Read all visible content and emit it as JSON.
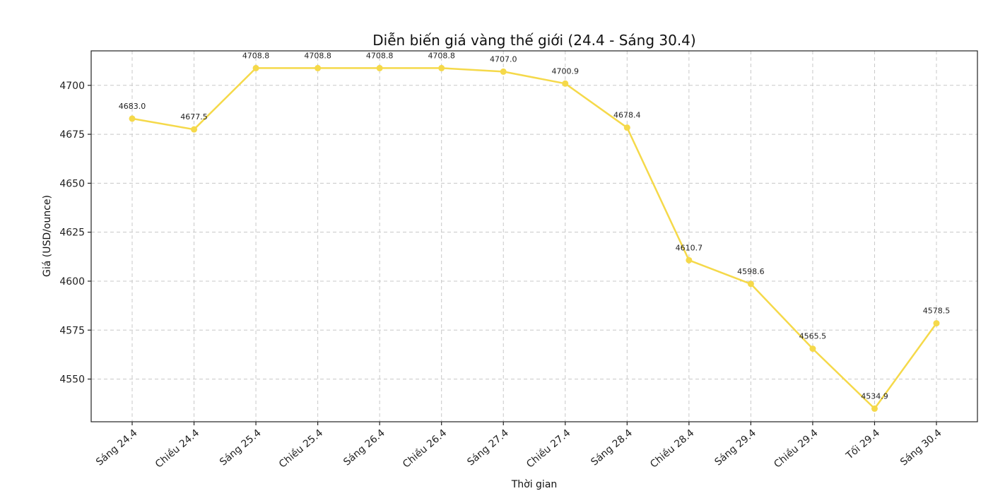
{
  "chart_data": {
    "type": "line",
    "title": "Diễn biến giá vàng thế giới (24.4 - Sáng 30.4)",
    "xlabel": "Thời gian",
    "ylabel": "Giá (USD/ounce)",
    "categories": [
      "Sáng 24.4",
      "Chiều 24.4",
      "Sáng 25.4",
      "Chiều 25.4",
      "Sáng 26.4",
      "Chiều 26.4",
      "Sáng 27.4",
      "Chiều 27.4",
      "Sáng 28.4",
      "Chiều 28.4",
      "Sáng 29.4",
      "Chiều 29.4",
      "Tối 29.4",
      "Sáng 30.4"
    ],
    "values": [
      4683.0,
      4677.5,
      4708.8,
      4708.8,
      4708.8,
      4708.8,
      4707.0,
      4700.9,
      4678.4,
      4610.7,
      4598.6,
      4565.5,
      4534.9,
      4578.5
    ],
    "data_labels": [
      "4683.0",
      "4677.5",
      "4708.8",
      "4708.8",
      "4708.8",
      "4708.8",
      "4707.0",
      "4700.9",
      "4678.4",
      "4610.7",
      "4598.6",
      "4565.5",
      "4534.9",
      "4578.5"
    ],
    "yticks": [
      4550,
      4575,
      4600,
      4625,
      4650,
      4675,
      4700
    ],
    "ylim": [
      4528.2,
      4717.6
    ],
    "grid": true,
    "color": "#f5d94a"
  }
}
